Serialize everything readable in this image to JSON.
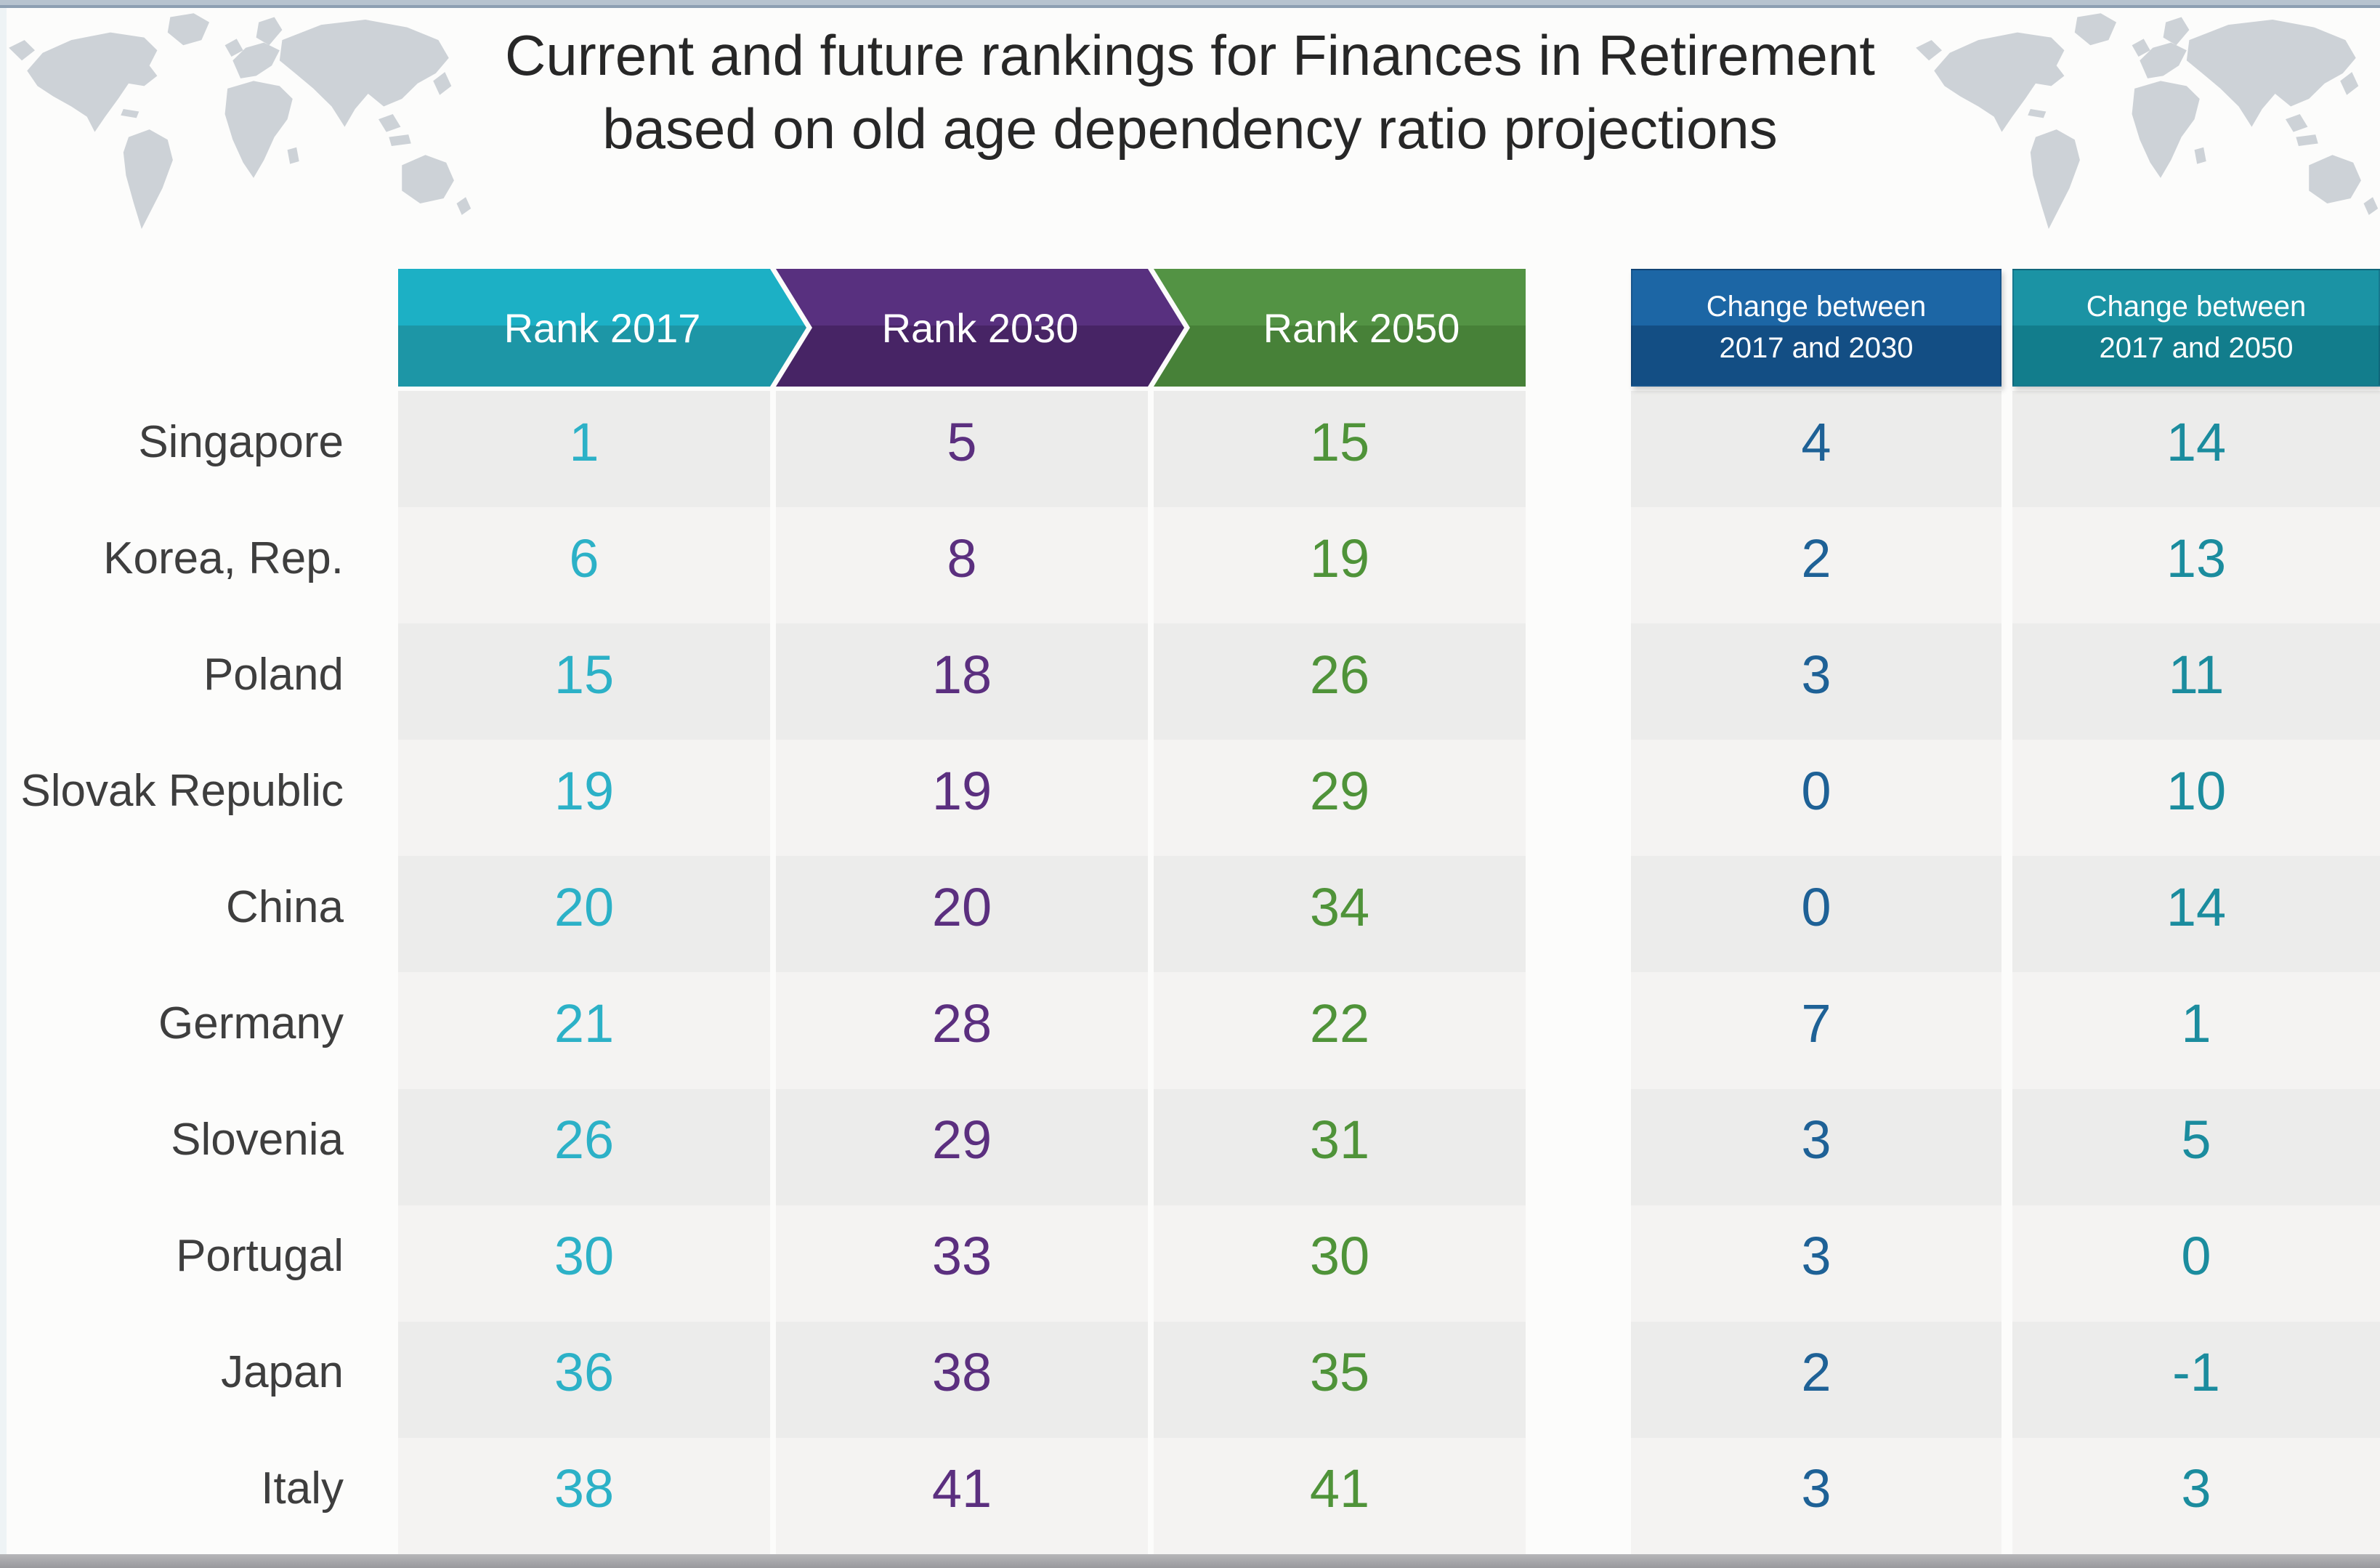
{
  "title": {
    "line1": "Current and future rankings for Finances in Retirement",
    "line2": "based on old age dependency ratio projections"
  },
  "columns": {
    "rank2017": {
      "label": "Rank 2017",
      "header_top": "#1cb0c5",
      "header_bottom": "#1d96a6",
      "value_color": "#2cb1c7"
    },
    "rank2030": {
      "label": "Rank 2030",
      "header_top": "#58307f",
      "header_bottom": "#472465",
      "value_color": "#5b2f7f"
    },
    "rank2050": {
      "label": "Rank 2050",
      "header_top": "#539344",
      "header_bottom": "#478138",
      "value_color": "#4f9339"
    },
    "change2030": {
      "label_line1": "Change between",
      "label_line2": "2017 and 2030",
      "header_top": "#1c66a5",
      "header_bottom": "#134e84",
      "value_color": "#1e6196"
    },
    "change2050": {
      "label_line1": "Change between",
      "label_line2": "2017 and 2050",
      "header_top": "#1b93a4",
      "header_bottom": "#127d8c",
      "value_color": "#1b8c9e"
    }
  },
  "rows": [
    {
      "country": "Singapore",
      "rank2017": "1",
      "rank2030": "5",
      "rank2050": "15",
      "change2030": "4",
      "change2050": "14"
    },
    {
      "country": "Korea, Rep.",
      "rank2017": "6",
      "rank2030": "8",
      "rank2050": "19",
      "change2030": "2",
      "change2050": "13"
    },
    {
      "country": "Poland",
      "rank2017": "15",
      "rank2030": "18",
      "rank2050": "26",
      "change2030": "3",
      "change2050": "11"
    },
    {
      "country": "Slovak Republic",
      "rank2017": "19",
      "rank2030": "19",
      "rank2050": "29",
      "change2030": "0",
      "change2050": "10"
    },
    {
      "country": "China",
      "rank2017": "20",
      "rank2030": "20",
      "rank2050": "34",
      "change2030": "0",
      "change2050": "14"
    },
    {
      "country": "Germany",
      "rank2017": "21",
      "rank2030": "28",
      "rank2050": "22",
      "change2030": "7",
      "change2050": "1"
    },
    {
      "country": "Slovenia",
      "rank2017": "26",
      "rank2030": "29",
      "rank2050": "31",
      "change2030": "3",
      "change2050": "5"
    },
    {
      "country": "Portugal",
      "rank2017": "30",
      "rank2030": "33",
      "rank2050": "30",
      "change2030": "3",
      "change2050": "0"
    },
    {
      "country": "Japan",
      "rank2017": "36",
      "rank2030": "38",
      "rank2050": "35",
      "change2030": "2",
      "change2050": "-1"
    },
    {
      "country": "Italy",
      "rank2017": "38",
      "rank2030": "41",
      "rank2050": "41",
      "change2030": "3",
      "change2050": "3"
    }
  ],
  "chart_data": {
    "type": "table",
    "title": "Current and future rankings for Finances in Retirement based on old age dependency ratio projections",
    "columns": [
      "Rank 2017",
      "Rank 2030",
      "Rank 2050",
      "Change between 2017 and 2030",
      "Change between 2017 and 2050"
    ],
    "rows": [
      {
        "country": "Singapore",
        "values": [
          1,
          5,
          15,
          4,
          14
        ]
      },
      {
        "country": "Korea, Rep.",
        "values": [
          6,
          8,
          19,
          2,
          13
        ]
      },
      {
        "country": "Poland",
        "values": [
          15,
          18,
          26,
          3,
          11
        ]
      },
      {
        "country": "Slovak Republic",
        "values": [
          19,
          19,
          29,
          0,
          10
        ]
      },
      {
        "country": "China",
        "values": [
          20,
          20,
          34,
          0,
          14
        ]
      },
      {
        "country": "Germany",
        "values": [
          21,
          28,
          22,
          7,
          1
        ]
      },
      {
        "country": "Slovenia",
        "values": [
          26,
          29,
          31,
          3,
          5
        ]
      },
      {
        "country": "Portugal",
        "values": [
          30,
          33,
          30,
          3,
          0
        ]
      },
      {
        "country": "Japan",
        "values": [
          36,
          38,
          35,
          2,
          -1
        ]
      },
      {
        "country": "Italy",
        "values": [
          38,
          41,
          41,
          3,
          3
        ]
      }
    ],
    "layout": {
      "header_style": "chevron-arrows",
      "row_shading": "alternating",
      "legend_position": "none",
      "grid": false
    }
  }
}
